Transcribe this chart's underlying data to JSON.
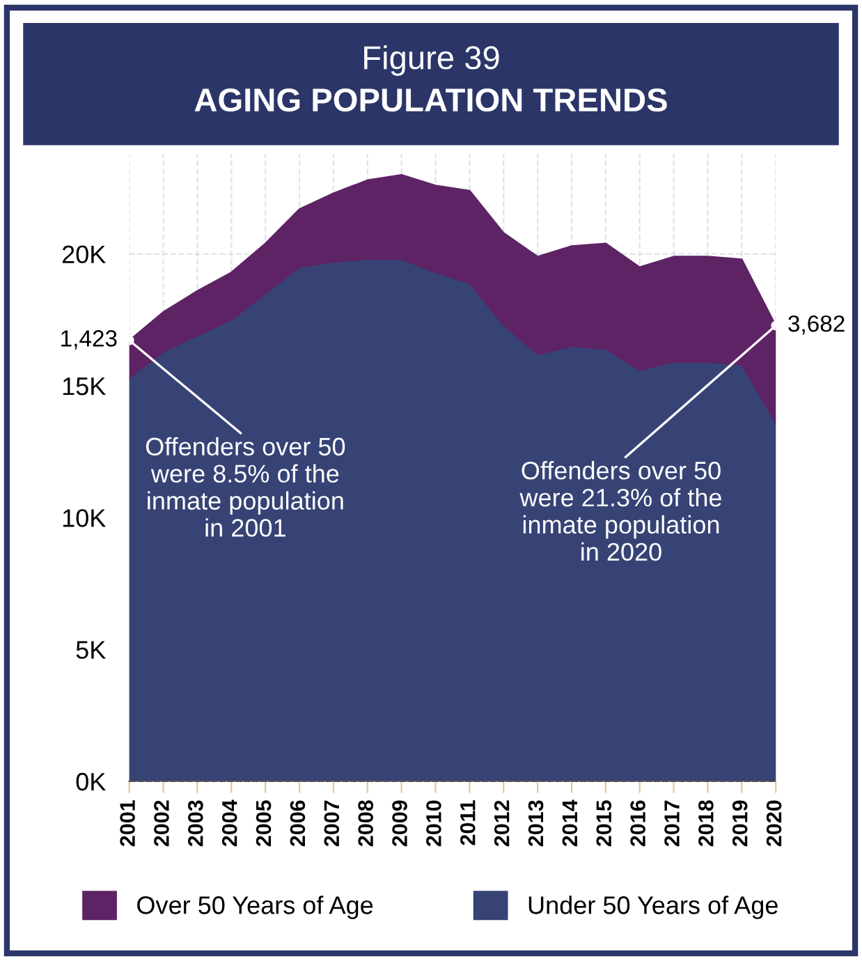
{
  "chart_data": {
    "type": "area",
    "title": "Figure 39",
    "subtitle": "AGING POPULATION TRENDS",
    "stacked": true,
    "categories": [
      "2001",
      "2002",
      "2003",
      "2004",
      "2005",
      "2006",
      "2007",
      "2008",
      "2009",
      "2010",
      "2011",
      "2012",
      "2013",
      "2014",
      "2015",
      "2016",
      "2017",
      "2018",
      "2019",
      "2020"
    ],
    "series": [
      {
        "name": "Under 50 Years of Age",
        "color": "#374375",
        "values": [
          15300,
          16300,
          16900,
          17500,
          18500,
          19500,
          19700,
          19800,
          19800,
          19300,
          18900,
          17300,
          16200,
          16500,
          16400,
          15600,
          15900,
          15900,
          15800,
          13600
        ]
      },
      {
        "name": "Over 50 Years of Age",
        "color": "#5e2365",
        "values": [
          1423,
          1500,
          1700,
          1800,
          1900,
          2200,
          2600,
          3000,
          3200,
          3300,
          3500,
          3500,
          3700,
          3800,
          4000,
          3900,
          4000,
          4000,
          4000,
          3682
        ],
        "value_labels": [
          "1,423",
          null,
          null,
          null,
          null,
          null,
          null,
          null,
          null,
          null,
          null,
          null,
          null,
          null,
          null,
          null,
          null,
          null,
          null,
          "3,682"
        ]
      }
    ],
    "ylim": [
      0,
      23800
    ],
    "yticks": [
      {
        "value": 0,
        "label": "0K"
      },
      {
        "value": 5000,
        "label": "5K"
      },
      {
        "value": 10000,
        "label": "10K"
      },
      {
        "value": 15000,
        "label": "15K"
      },
      {
        "value": 20000,
        "label": "20K"
      }
    ],
    "grid": true,
    "legend": "bottom",
    "annotations": [
      {
        "text": "Offenders over 50\nwere 8.5% of the\ninmate population\nin 2001",
        "x": "2001",
        "y": 16723
      },
      {
        "text": "Offenders over 50\nwere 21.3% of the\ninmate population\nin 2020",
        "x": "2020",
        "y": 17282
      }
    ]
  }
}
